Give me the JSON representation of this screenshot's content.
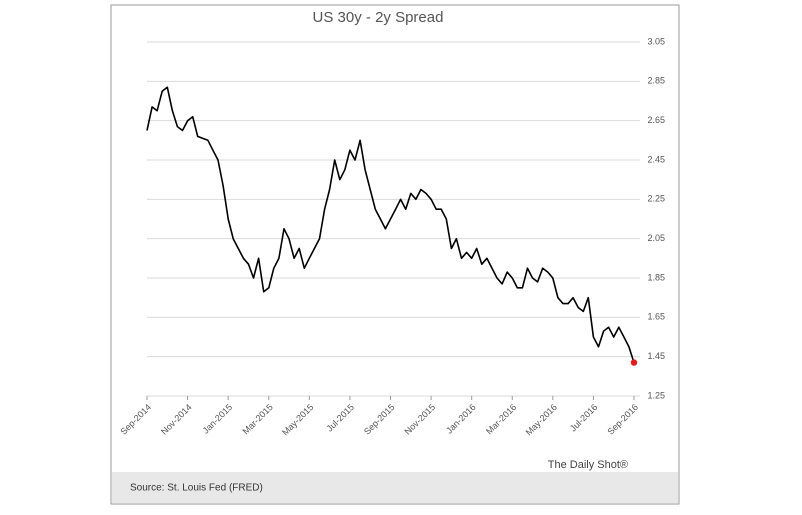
{
  "chart_data": {
    "type": "line",
    "title": "US 30y - 2y Spread",
    "categories": [
      "Sep-2014",
      null,
      null,
      null,
      null,
      null,
      null,
      null,
      "Nov-2014",
      null,
      null,
      null,
      null,
      null,
      null,
      null,
      "Jan-2015",
      null,
      null,
      null,
      null,
      null,
      null,
      null,
      "Mar-2015",
      null,
      null,
      null,
      null,
      null,
      null,
      null,
      "May-2015",
      null,
      null,
      null,
      null,
      null,
      null,
      null,
      "Jul-2015",
      null,
      null,
      null,
      null,
      null,
      null,
      null,
      "Sep-2015",
      null,
      null,
      null,
      null,
      null,
      null,
      null,
      "Nov-2015",
      null,
      null,
      null,
      null,
      null,
      null,
      null,
      "Jan-2016",
      null,
      null,
      null,
      null,
      null,
      null,
      null,
      "Mar-2016",
      null,
      null,
      null,
      null,
      null,
      null,
      null,
      "May-2016",
      null,
      null,
      null,
      null,
      null,
      null,
      null,
      "Jul-2016",
      null,
      null,
      null,
      null,
      null,
      null,
      null,
      "Sep-2016"
    ],
    "series": [
      {
        "color": "#000000",
        "values": [
          2.6,
          2.72,
          2.7,
          2.8,
          2.82,
          2.7,
          2.62,
          2.6,
          2.65,
          2.67,
          2.57,
          2.56,
          2.55,
          2.5,
          2.45,
          2.32,
          2.15,
          2.05,
          2.0,
          1.95,
          1.92,
          1.85,
          1.95,
          1.78,
          1.8,
          1.9,
          1.95,
          2.1,
          2.05,
          1.95,
          2.0,
          1.9,
          1.95,
          2.0,
          2.05,
          2.2,
          2.3,
          2.45,
          2.35,
          2.4,
          2.5,
          2.45,
          2.55,
          2.4,
          2.3,
          2.2,
          2.15,
          2.1,
          2.15,
          2.2,
          2.25,
          2.2,
          2.28,
          2.25,
          2.3,
          2.28,
          2.25,
          2.2,
          2.2,
          2.15,
          2.0,
          2.05,
          1.95,
          1.98,
          1.95,
          2.0,
          1.92,
          1.95,
          1.9,
          1.85,
          1.82,
          1.88,
          1.85,
          1.8,
          1.8,
          1.9,
          1.85,
          1.83,
          1.9,
          1.88,
          1.85,
          1.75,
          1.72,
          1.72,
          1.75,
          1.7,
          1.68,
          1.75,
          1.55,
          1.5,
          1.58,
          1.6,
          1.55,
          1.6,
          1.55,
          1.5,
          1.42
        ]
      }
    ],
    "end_marker_color": "#e02020",
    "ylim": [
      1.25,
      3.05
    ],
    "yticks": [
      {
        "value": 1.25,
        "label": "1.25"
      },
      {
        "value": 1.45,
        "label": "1.45"
      },
      {
        "value": 1.65,
        "label": "1.65"
      },
      {
        "value": 1.85,
        "label": "1.85"
      },
      {
        "value": 2.05,
        "label": "2.05"
      },
      {
        "value": 2.25,
        "label": "2.25"
      },
      {
        "value": 2.45,
        "label": "2.45"
      },
      {
        "value": 2.65,
        "label": "2.65"
      },
      {
        "value": 2.85,
        "label": "2.85"
      },
      {
        "value": 3.05,
        "label": "3.05"
      }
    ],
    "grid": true
  },
  "credit": "The Daily Shot®",
  "source": "Source: St. Louis Fed (FRED)"
}
